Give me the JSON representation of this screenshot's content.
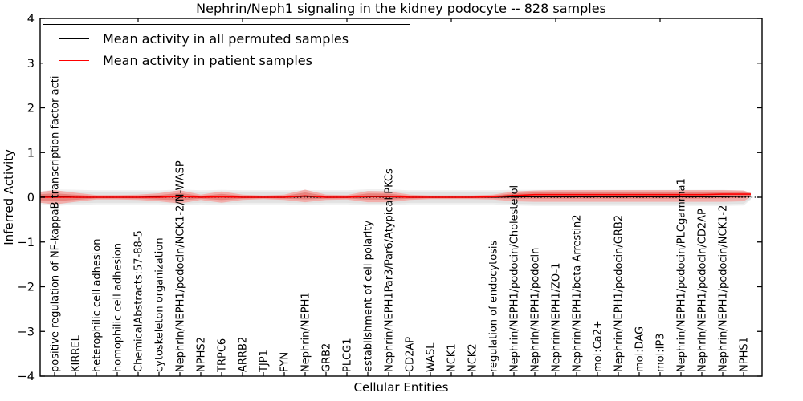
{
  "figure": {
    "title": "Nephrin/Neph1 signaling in the kidney podocyte -- 828 samples",
    "xlabel": "Cellular Entities",
    "ylabel": "Inferred Activity",
    "legend": [
      {
        "label": "Mean activity in all permuted samples",
        "color": "#000000"
      },
      {
        "label": "Mean activity in patient samples",
        "color": "#ff0000"
      }
    ]
  },
  "chart_data": {
    "type": "line",
    "title": "Nephrin/Neph1 signaling in the kidney podocyte -- 828 samples",
    "xlabel": "Cellular Entities",
    "ylabel": "Inferred Activity",
    "ylim": [
      -4,
      4
    ],
    "yticks": [
      4,
      3,
      2,
      1,
      0,
      -1,
      -2,
      -3,
      -4
    ],
    "grid": false,
    "legend_position": "upper left",
    "zero_line": 0,
    "colors": {
      "permuted_line": "#000000",
      "patient_line": "#ff0000",
      "patient_band_outer": "#f1aeab",
      "patient_band_inner": "#e8837e",
      "permuted_band": "#e2e2e2",
      "permuted_band_outer": "#efefef"
    },
    "categories": [
      "positive regulation of NF-kappaB transcription factor activity",
      "KIRREL",
      "heterophilic cell adhesion",
      "homophilic cell adhesion",
      "ChemicalAbstracts:57-88-5",
      "cytoskeleton organization",
      "Nephrin/NEPH1/podocin/NCK1-2/N-WASP",
      "NPHS2",
      "TRPC6",
      "ARRB2",
      "TJP1",
      "FYN",
      "Nephrin/NEPH1",
      "GRB2",
      "PLCG1",
      "establishment of cell polarity",
      "Nephrin/NEPH1Par3/Par6/Atypical PKCs",
      "CD2AP",
      "WASL",
      "NCK1",
      "NCK2",
      "regulation of endocytosis",
      "Nephrin/NEPH1/podocin/Cholesterol",
      "Nephrin/NEPH1/podocin",
      "Nephrin/NEPH1/ZO-1",
      "Nephrin/NEPH1/beta Arrestin2",
      "mol:Ca2+",
      "Nephrin/NEPH1/podocin/GRB2",
      "mol:DAG",
      "mol:IP3",
      "Nephrin/NEPH1/podocin/PLCgamma1",
      "Nephrin/NEPH1/podocin/CD2AP",
      "Nephrin/NEPH1/podocin/NCK1-2",
      "NPHS1"
    ],
    "series": [
      {
        "name": "Mean activity in all permuted samples",
        "color": "#000000",
        "values": [
          0.02,
          0,
          0,
          0,
          0,
          0.01,
          0.02,
          0,
          0.01,
          0,
          0,
          0,
          0.02,
          0,
          0,
          0.01,
          0.01,
          0,
          0,
          0,
          0,
          0,
          0.01,
          0.01,
          0.01,
          0.01,
          0.01,
          0.01,
          0.01,
          0.01,
          0.01,
          0.01,
          0.01,
          0.02
        ]
      },
      {
        "name": "Mean activity in patient samples",
        "color": "#ff0000",
        "values": [
          0,
          0,
          0,
          0,
          0,
          0,
          0.02,
          0,
          0.01,
          0,
          0,
          0,
          0.03,
          0,
          0,
          0.02,
          0.02,
          0,
          0,
          0,
          0,
          0.01,
          0.04,
          0.06,
          0.06,
          0.06,
          0.06,
          0.06,
          0.06,
          0.06,
          0.06,
          0.06,
          0.07,
          0.07
        ]
      }
    ],
    "bands": {
      "patient": {
        "name": "patient activity range",
        "upper": [
          0.16,
          0.1,
          0.05,
          0.05,
          0.06,
          0.09,
          0.16,
          0.06,
          0.13,
          0.06,
          0.04,
          0.06,
          0.17,
          0.06,
          0.05,
          0.14,
          0.13,
          0.06,
          0.04,
          0.04,
          0.04,
          0.06,
          0.13,
          0.15,
          0.16,
          0.16,
          0.16,
          0.16,
          0.16,
          0.16,
          0.16,
          0.16,
          0.16,
          0.15
        ],
        "lower": [
          -0.16,
          -0.1,
          -0.05,
          -0.05,
          -0.06,
          -0.09,
          -0.14,
          -0.06,
          -0.12,
          -0.06,
          -0.04,
          -0.06,
          -0.11,
          -0.06,
          -0.05,
          -0.11,
          -0.11,
          -0.06,
          -0.04,
          -0.04,
          -0.04,
          -0.05,
          -0.09,
          -0.1,
          -0.1,
          -0.1,
          -0.1,
          -0.1,
          -0.1,
          -0.1,
          -0.1,
          -0.1,
          -0.1,
          -0.09
        ]
      },
      "permuted": {
        "name": "permuted activity range",
        "upper": [
          0.15,
          0.14,
          0.13,
          0.13,
          0.13,
          0.13,
          0.15,
          0.13,
          0.14,
          0.13,
          0.13,
          0.13,
          0.14,
          0.13,
          0.13,
          0.15,
          0.15,
          0.13,
          0.13,
          0.13,
          0.13,
          0.13,
          0.14,
          0.14,
          0.14,
          0.14,
          0.14,
          0.14,
          0.14,
          0.14,
          0.14,
          0.14,
          0.14,
          0.13
        ],
        "lower": [
          -0.16,
          -0.14,
          -0.13,
          -0.13,
          -0.13,
          -0.13,
          -0.15,
          -0.13,
          -0.14,
          -0.13,
          -0.13,
          -0.13,
          -0.14,
          -0.13,
          -0.13,
          -0.15,
          -0.15,
          -0.13,
          -0.13,
          -0.13,
          -0.13,
          -0.13,
          -0.15,
          -0.16,
          -0.16,
          -0.16,
          -0.16,
          -0.16,
          -0.16,
          -0.16,
          -0.16,
          -0.16,
          -0.16,
          -0.15
        ]
      }
    }
  }
}
